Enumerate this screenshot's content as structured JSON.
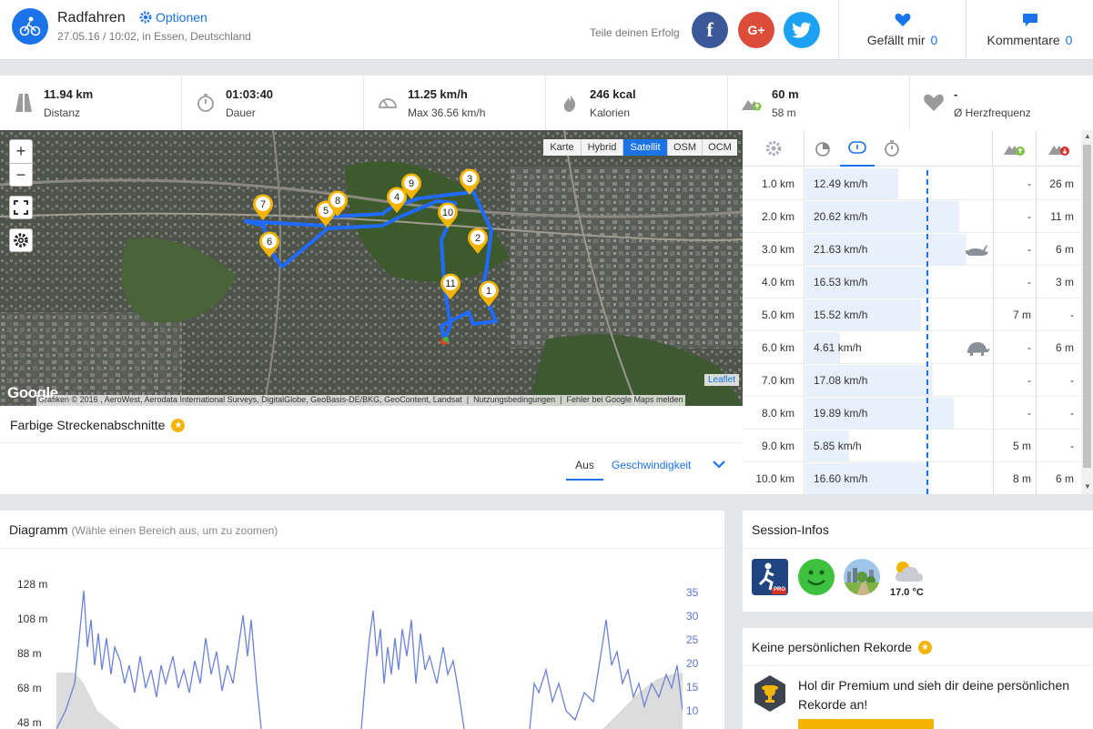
{
  "header": {
    "title": "Radfahren",
    "options_label": "Optionen",
    "subtitle": "27.05.16 / 10:02, in Essen, Deutschland",
    "share_label": "Teile deinen Erfolg",
    "social": [
      {
        "name": "facebook",
        "glyph": "f",
        "color": "#3b5998"
      },
      {
        "name": "google-plus",
        "glyph": "G+",
        "color": "#dd4b39"
      },
      {
        "name": "twitter",
        "glyph": "t",
        "color": "#1da1f2"
      }
    ],
    "likes_label": "Gefällt mir",
    "likes_count": "0",
    "comments_label": "Kommentare",
    "comments_count": "0"
  },
  "stats": [
    {
      "icon": "road-icon",
      "value": "11.94 km",
      "label": "Distanz"
    },
    {
      "icon": "stopwatch-icon",
      "value": "01:03:40",
      "label": "Dauer"
    },
    {
      "icon": "speedometer-icon",
      "value": "11.25 km/h",
      "label": "Max 36.56 km/h"
    },
    {
      "icon": "flame-icon",
      "value": "246 kcal",
      "label": "Kalorien"
    },
    {
      "icon": "elevation-icon",
      "value": "60 m",
      "label": "58 m"
    },
    {
      "icon": "heart-icon",
      "value": "-",
      "label": "Ø Herzfrequenz"
    }
  ],
  "map": {
    "zoom_in": "+",
    "zoom_out": "−",
    "types": [
      "Karte",
      "Hybrid",
      "Satellit",
      "OSM",
      "OCM"
    ],
    "active_type": "Satellit",
    "google_logo": "Google",
    "attribution": "Grafiken © 2016 , AeroWest, Aerodata International Surveys, DigitalGlobe, GeoBasis-DE/BKG, GeoContent, Landsat",
    "terms": "Nutzungsbedingungen",
    "report": "Fehler bei Google Maps melden",
    "leaflet": "Leaflet",
    "markers": [
      "1",
      "2",
      "3",
      "4",
      "5",
      "6",
      "7",
      "8",
      "9",
      "10",
      "11"
    ]
  },
  "segments": {
    "title": "Farbige Streckenabschnitte",
    "tab_off": "Aus",
    "tab_speed": "Geschwindigkeit"
  },
  "laps": {
    "avg_fraction": 0.52,
    "rows": [
      {
        "km": "1.0 km",
        "speed": "12.49 km/h",
        "kmh": 12.49,
        "up": "-",
        "down": "26 m",
        "marker": ""
      },
      {
        "km": "2.0 km",
        "speed": "20.62 km/h",
        "kmh": 20.62,
        "up": "-",
        "down": "11 m",
        "marker": ""
      },
      {
        "km": "3.0 km",
        "speed": "21.63 km/h",
        "kmh": 21.63,
        "up": "-",
        "down": "6 m",
        "marker": "rabbit-icon"
      },
      {
        "km": "4.0 km",
        "speed": "16.53 km/h",
        "kmh": 16.53,
        "up": "-",
        "down": "3 m",
        "marker": ""
      },
      {
        "km": "5.0 km",
        "speed": "15.52 km/h",
        "kmh": 15.52,
        "up": "7 m",
        "down": "-",
        "marker": ""
      },
      {
        "km": "6.0 km",
        "speed": "4.61 km/h",
        "kmh": 4.61,
        "up": "-",
        "down": "6 m",
        "marker": "turtle-icon"
      },
      {
        "km": "7.0 km",
        "speed": "17.08 km/h",
        "kmh": 17.08,
        "up": "-",
        "down": "-",
        "marker": ""
      },
      {
        "km": "8.0 km",
        "speed": "19.89 km/h",
        "kmh": 19.89,
        "up": "-",
        "down": "-",
        "marker": ""
      },
      {
        "km": "9.0 km",
        "speed": "5.85 km/h",
        "kmh": 5.85,
        "up": "5 m",
        "down": "-",
        "marker": ""
      },
      {
        "km": "10.0 km",
        "speed": "16.60 km/h",
        "kmh": 16.6,
        "up": "8 m",
        "down": "6 m",
        "marker": ""
      }
    ]
  },
  "diagram": {
    "title": "Diagramm",
    "hint": "(Wähle einen Bereich aus, um zu zoomen)",
    "left_ticks": [
      "128 m",
      "108 m",
      "88 m",
      "68 m",
      "48 m"
    ],
    "right_ticks": [
      "35",
      "30",
      "25",
      "20",
      "15",
      "10"
    ],
    "accent": "#5b73d6"
  },
  "session": {
    "title": "Session-Infos",
    "temperature": "17.0 °C",
    "app_badge": "PRO"
  },
  "records": {
    "title": "Keine persönlichen Rekorde",
    "text": "Hol dir Premium und sieh dir deine persönlichen Rekorde an!"
  }
}
